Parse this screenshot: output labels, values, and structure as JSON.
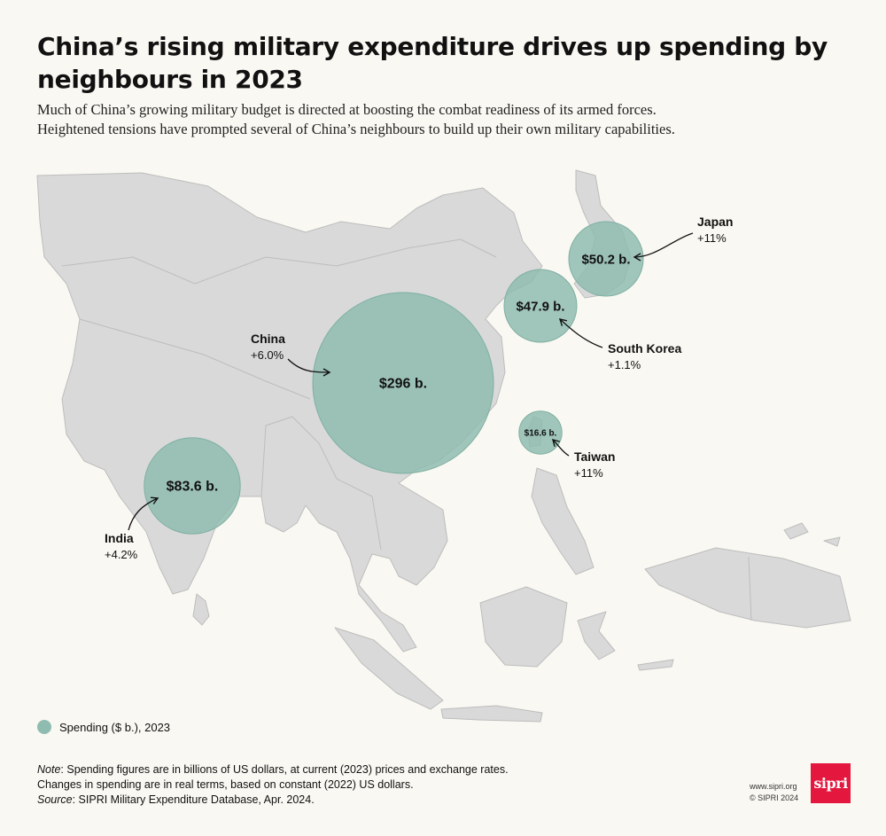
{
  "header": {
    "title": "China’s rising military expenditure drives up spending by neighbours in 2023",
    "subtitle_line1": "Much of China’s growing military budget is directed at boosting the combat readiness of its armed forces.",
    "subtitle_line2": "Heightened tensions have prompted several of China’s neighbours to build up their own military capabilities."
  },
  "map": {
    "land_color": "#d9d9d9",
    "border_color": "#bdbdbd",
    "bubble_color": "#8fbcb0",
    "countries": [
      {
        "id": "china",
        "name": "China",
        "change": "+6.0%",
        "spending": 296,
        "spending_label": "$296 b."
      },
      {
        "id": "india",
        "name": "India",
        "change": "+4.2%",
        "spending": 83.6,
        "spending_label": "$83.6 b."
      },
      {
        "id": "japan",
        "name": "Japan",
        "change": "+11%",
        "spending": 50.2,
        "spending_label": "$50.2 b."
      },
      {
        "id": "south-korea",
        "name": "South Korea",
        "change": "+1.1%",
        "spending": 47.9,
        "spending_label": "$47.9 b."
      },
      {
        "id": "taiwan",
        "name": "Taiwan",
        "change": "+11%",
        "spending": 16.6,
        "spending_label": "$16.6 b."
      }
    ]
  },
  "legend": {
    "label": "Spending ($ b.), 2023"
  },
  "notes": {
    "note_prefix": "Note",
    "note_text": ": Spending figures are in billions of US dollars, at current (2023) prices and exchange rates.",
    "line2": "Changes in spending are in real terms, based on constant (2022) US dollars.",
    "source_prefix": "Source",
    "source_text": ": SIPRI Military Expenditure Database, Apr. 2024."
  },
  "credit": {
    "url": "www.sipri.org",
    "copyright": "© SIPRI 2024",
    "logo_text": "sipri"
  }
}
